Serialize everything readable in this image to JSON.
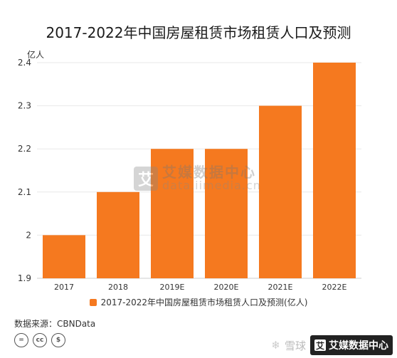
{
  "title": "2017-2022年中国房屋租赁市场租赁人口及预测",
  "unit": "亿人",
  "legend_label": "2017-2022年中国房屋租赁市场租赁人口及预测(亿人)",
  "source": "数据来源：CBNData",
  "cc_icons": [
    "=",
    "cc",
    "$"
  ],
  "watermark": {
    "name": "艾媒数据中心",
    "url": "data.iimedia.cn",
    "logo_char": "艾"
  },
  "corner_mark": {
    "logo": "雪球",
    "badge": "艾媒数据中心",
    "badge_char": "艾"
  },
  "colors": {
    "bar": "#f5791f",
    "grid": "#e8e8e8",
    "axis": "#cccccc"
  },
  "chart_data": {
    "type": "bar",
    "title": "2017-2022年中国房屋租赁市场租赁人口及预测",
    "ylabel": "亿人",
    "xlabel": "",
    "categories": [
      "2017",
      "2018",
      "2019E",
      "2020E",
      "2021E",
      "2022E"
    ],
    "series": [
      {
        "name": "2017-2022年中国房屋租赁市场租赁人口及预测(亿人)",
        "values": [
          2.0,
          2.1,
          2.2,
          2.2,
          2.3,
          2.4
        ]
      }
    ],
    "ylim": [
      1.9,
      2.4
    ],
    "yticks": [
      "1.9",
      "2",
      "2.1",
      "2.2",
      "2.3",
      "2.4"
    ],
    "grid": true,
    "legend_position": "bottom"
  }
}
